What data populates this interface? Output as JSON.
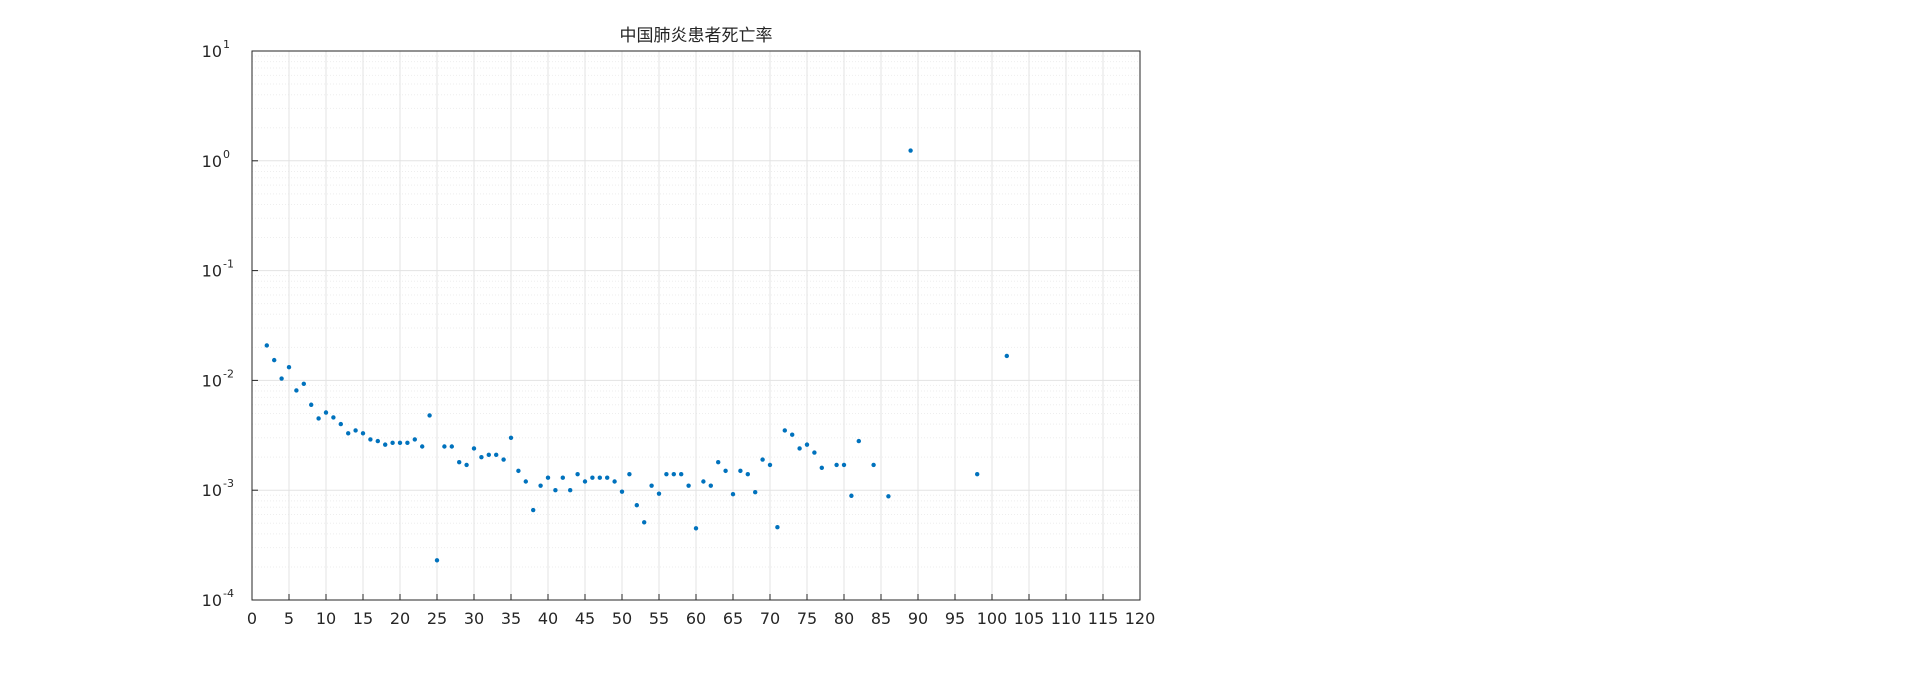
{
  "chart_data": {
    "type": "scatter",
    "title": "中国肺炎患者死亡率",
    "xlabel": "",
    "ylabel": "",
    "xlim": [
      0,
      120
    ],
    "ylim": [
      0.0001,
      10
    ],
    "yscale": "log",
    "grid": true,
    "minor_grid": true,
    "legend": "none",
    "x_ticks": [
      0,
      5,
      10,
      15,
      20,
      25,
      30,
      35,
      40,
      45,
      50,
      55,
      60,
      65,
      70,
      75,
      80,
      85,
      90,
      95,
      100,
      105,
      110,
      115,
      120
    ],
    "y_ticks": [
      {
        "base": "10",
        "exp": "-4",
        "value": 0.0001
      },
      {
        "base": "10",
        "exp": "-3",
        "value": 0.001
      },
      {
        "base": "10",
        "exp": "-2",
        "value": 0.01
      },
      {
        "base": "10",
        "exp": "-1",
        "value": 0.1
      },
      {
        "base": "10",
        "exp": "0",
        "value": 1
      },
      {
        "base": "10",
        "exp": "1",
        "value": 10
      }
    ],
    "colors": {
      "marker": "#0072BD",
      "grid": "#e3e3e3",
      "axis": "#262626"
    },
    "series": [
      {
        "points": [
          [
            2,
            0.0208
          ],
          [
            3,
            0.0153
          ],
          [
            4,
            0.0104
          ],
          [
            5,
            0.0132
          ],
          [
            6,
            0.0081
          ],
          [
            7,
            0.0093
          ],
          [
            8,
            0.006
          ],
          [
            9,
            0.0045
          ],
          [
            10,
            0.0051
          ],
          [
            11,
            0.0046
          ],
          [
            12,
            0.004
          ],
          [
            13,
            0.0033
          ],
          [
            14,
            0.0035
          ],
          [
            15,
            0.0033
          ],
          [
            16,
            0.0029
          ],
          [
            17,
            0.0028
          ],
          [
            18,
            0.0026
          ],
          [
            19,
            0.0027
          ],
          [
            20,
            0.0027
          ],
          [
            21,
            0.0027
          ],
          [
            22,
            0.0029
          ],
          [
            23,
            0.0025
          ],
          [
            24,
            0.0048
          ],
          [
            25,
            0.00023
          ],
          [
            26,
            0.0025
          ],
          [
            27,
            0.0025
          ],
          [
            28,
            0.0018
          ],
          [
            29,
            0.0017
          ],
          [
            30,
            0.0024
          ],
          [
            31,
            0.002
          ],
          [
            32,
            0.0021
          ],
          [
            33,
            0.0021
          ],
          [
            34,
            0.0019
          ],
          [
            35,
            0.003
          ],
          [
            36,
            0.0015
          ],
          [
            37,
            0.0012
          ],
          [
            38,
            0.00066
          ],
          [
            39,
            0.0011
          ],
          [
            40,
            0.0013
          ],
          [
            41,
            0.001
          ],
          [
            42,
            0.0013
          ],
          [
            43,
            0.001
          ],
          [
            44,
            0.0014
          ],
          [
            45,
            0.0012
          ],
          [
            46,
            0.0013
          ],
          [
            47,
            0.0013
          ],
          [
            48,
            0.0013
          ],
          [
            49,
            0.0012
          ],
          [
            50,
            0.00097
          ],
          [
            51,
            0.0014
          ],
          [
            52,
            0.00073
          ],
          [
            53,
            0.00051
          ],
          [
            54,
            0.0011
          ],
          [
            55,
            0.00093
          ],
          [
            56,
            0.0014
          ],
          [
            57,
            0.0014
          ],
          [
            58,
            0.0014
          ],
          [
            59,
            0.0011
          ],
          [
            60,
            0.00045
          ],
          [
            61,
            0.0012
          ],
          [
            62,
            0.0011
          ],
          [
            63,
            0.0018
          ],
          [
            64,
            0.0015
          ],
          [
            65,
            0.00092
          ],
          [
            66,
            0.0015
          ],
          [
            67,
            0.0014
          ],
          [
            68,
            0.00096
          ],
          [
            69,
            0.0019
          ],
          [
            70,
            0.0017
          ],
          [
            71,
            0.00046
          ],
          [
            72,
            0.0035
          ],
          [
            73,
            0.0032
          ],
          [
            74,
            0.0024
          ],
          [
            75,
            0.0026
          ],
          [
            76,
            0.0022
          ],
          [
            77,
            0.0016
          ],
          [
            79,
            0.0017
          ],
          [
            80,
            0.0017
          ],
          [
            81,
            0.00089
          ],
          [
            82,
            0.0028
          ],
          [
            84,
            0.0017
          ],
          [
            86,
            0.00088
          ],
          [
            89,
            1.24
          ],
          [
            98,
            0.0014
          ],
          [
            102,
            0.0167
          ]
        ]
      }
    ]
  }
}
